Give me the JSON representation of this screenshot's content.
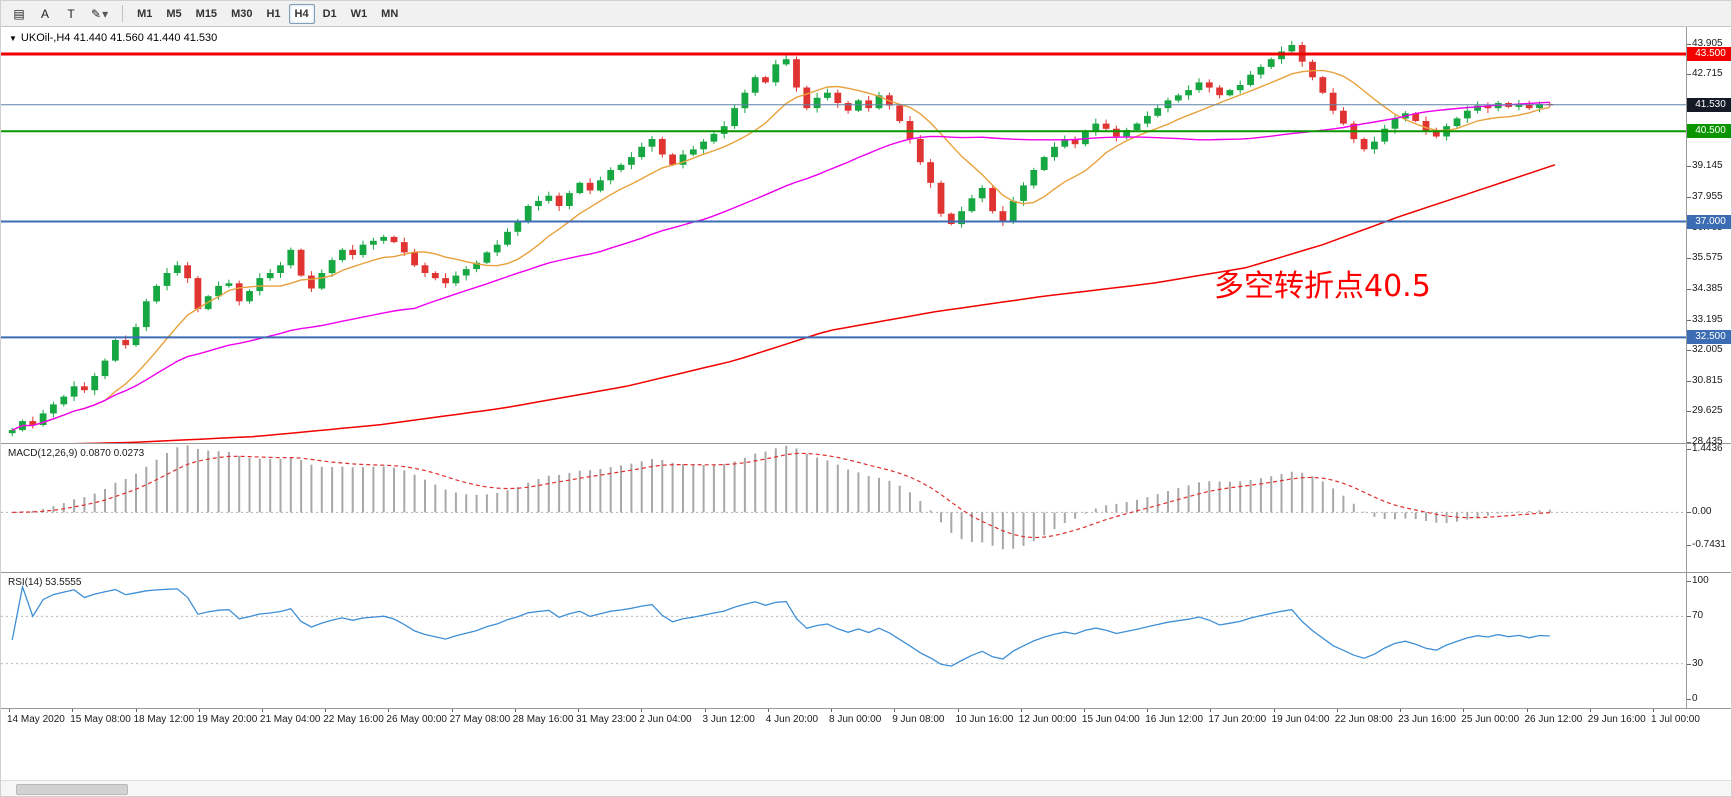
{
  "toolbar": {
    "icon_buttons": [
      {
        "name": "charts-grid-icon",
        "glyph": "▤",
        "dropdown": false
      },
      {
        "name": "cursor-icon",
        "glyph": "A",
        "dropdown": false
      },
      {
        "name": "text-tool-icon",
        "glyph": "T",
        "dropdown": false
      },
      {
        "name": "draw-tool-icon",
        "glyph": "✎",
        "dropdown": true
      }
    ],
    "timeframes": [
      {
        "label": "M1",
        "active": false
      },
      {
        "label": "M5",
        "active": false
      },
      {
        "label": "M15",
        "active": false
      },
      {
        "label": "M30",
        "active": false
      },
      {
        "label": "H1",
        "active": false
      },
      {
        "label": "H4",
        "active": true
      },
      {
        "label": "D1",
        "active": false
      },
      {
        "label": "W1",
        "active": false
      },
      {
        "label": "MN",
        "active": false
      }
    ]
  },
  "chart": {
    "expander_glyph": "▼",
    "title": "UKOil-,H4 41.440 41.560 41.440 41.530",
    "annotation": "多空转折点40.5",
    "levels": [
      {
        "price": 43.5,
        "label": "43.500",
        "color": "#f20000",
        "thickness": 3
      },
      {
        "price": 40.5,
        "label": "40.500",
        "color": "#0a9600",
        "thickness": 2
      },
      {
        "price": 37.0,
        "label": "37.000",
        "color": "#3c6cb4",
        "thickness": 2
      },
      {
        "price": 32.5,
        "label": "32.500",
        "color": "#3c6cb4",
        "thickness": 2
      }
    ],
    "current_price": {
      "price": 41.53,
      "label": "41.530",
      "line_color": "#5c84a8",
      "badge_color": "#141a26"
    }
  },
  "chart_data": {
    "type": "candlestick",
    "symbol": "UKOil-",
    "timeframe": "H4",
    "ohlc": {
      "open": 41.44,
      "high": 41.56,
      "low": 41.44,
      "close": 41.53
    },
    "price_range": {
      "min": 28.4,
      "max": 44.55
    },
    "price_ticks": [
      "43.905",
      "42.715",
      "41.525",
      "40.335",
      "39.145",
      "37.955",
      "36.765",
      "35.575",
      "34.385",
      "33.195",
      "32.005",
      "30.815",
      "29.625",
      "28.435"
    ],
    "up_color": "#16a642",
    "down_color": "#df3432",
    "closes": [
      28.9,
      29.25,
      29.1,
      29.55,
      29.9,
      30.2,
      30.6,
      30.45,
      31.0,
      31.6,
      32.4,
      32.2,
      32.9,
      33.9,
      34.5,
      35.0,
      35.3,
      34.8,
      33.6,
      34.1,
      34.5,
      34.6,
      33.9,
      34.3,
      34.8,
      35.0,
      35.3,
      35.9,
      34.9,
      34.4,
      35.0,
      35.5,
      35.9,
      35.7,
      36.1,
      36.25,
      36.4,
      36.2,
      35.8,
      35.3,
      35.0,
      34.8,
      34.6,
      34.9,
      35.15,
      35.4,
      35.8,
      36.1,
      36.6,
      37.0,
      37.6,
      37.8,
      38.0,
      37.6,
      38.1,
      38.5,
      38.2,
      38.6,
      39.0,
      39.2,
      39.5,
      39.9,
      40.2,
      39.6,
      39.2,
      39.6,
      39.8,
      40.1,
      40.4,
      40.7,
      41.4,
      42.0,
      42.6,
      42.4,
      43.1,
      43.3,
      42.2,
      41.4,
      41.8,
      42.0,
      41.6,
      41.3,
      41.7,
      41.4,
      41.9,
      41.5,
      40.9,
      40.2,
      39.3,
      38.5,
      37.3,
      36.9,
      37.4,
      37.9,
      38.3,
      37.4,
      37.0,
      37.8,
      38.4,
      39.0,
      39.5,
      39.9,
      40.2,
      40.0,
      40.5,
      40.8,
      40.6,
      40.3,
      40.55,
      40.8,
      41.1,
      41.4,
      41.7,
      41.9,
      42.1,
      42.4,
      42.2,
      41.9,
      42.1,
      42.3,
      42.7,
      43.0,
      43.3,
      43.6,
      43.85,
      43.2,
      42.6,
      42.0,
      41.3,
      40.8,
      40.2,
      39.8,
      40.1,
      40.6,
      41.0,
      41.2,
      40.9,
      40.5,
      40.3,
      40.7,
      41.0,
      41.3,
      41.5,
      41.4,
      41.6,
      41.45,
      41.55,
      41.4,
      41.56,
      41.53
    ],
    "overlays": {
      "ma_fast": {
        "period": 10,
        "color": "#e8a13c"
      },
      "ma_mid": {
        "period": 40,
        "color": "#ee00ee"
      },
      "ma_long": {
        "color": "#f20000",
        "anchors": [
          [
            0,
            28.32
          ],
          [
            0.08,
            28.42
          ],
          [
            0.16,
            28.65
          ],
          [
            0.24,
            29.1
          ],
          [
            0.32,
            29.75
          ],
          [
            0.4,
            30.6
          ],
          [
            0.47,
            31.6
          ],
          [
            0.53,
            32.75
          ],
          [
            0.6,
            33.5
          ],
          [
            0.67,
            34.1
          ],
          [
            0.74,
            34.6
          ],
          [
            0.8,
            35.2
          ],
          [
            0.85,
            36.1
          ],
          [
            0.9,
            37.2
          ],
          [
            0.95,
            38.2
          ],
          [
            1,
            39.2
          ]
        ]
      }
    },
    "indicators": {
      "macd": {
        "label": "MACD(12,26,9) 0.0870 0.0273",
        "fast": 12,
        "slow": 26,
        "signal_period": 9,
        "range": {
          "max": 1.55,
          "min": -1.35
        },
        "ticks": [
          {
            "label": "1.4436",
            "value": 1.4436
          },
          {
            "label": "0.00",
            "value": 0
          },
          {
            "label": "-0.7431",
            "value": -0.7431
          }
        ],
        "hist_color": "#a8a8a8",
        "signal_color": "#e03030"
      },
      "rsi": {
        "label": "RSI(14) 53.5555",
        "period": 14,
        "color": "#3f8fd6",
        "levels": [
          70,
          30
        ],
        "ticks": [
          {
            "label": "100",
            "value": 100
          },
          {
            "label": "70",
            "value": 70
          },
          {
            "label": "30",
            "value": 30
          },
          {
            "label": "0",
            "value": 0
          }
        ]
      }
    },
    "time_labels": [
      "14 May 2020",
      "15 May 08:00",
      "18 May 12:00",
      "19 May 20:00",
      "21 May 04:00",
      "22 May 16:00",
      "26 May 00:00",
      "27 May 08:00",
      "28 May 16:00",
      "31 May 23:00",
      "2 Jun 04:00",
      "3 Jun 12:00",
      "4 Jun 20:00",
      "8 Jun 00:00",
      "9 Jun 08:00",
      "10 Jun 16:00",
      "12 Jun 00:00",
      "15 Jun 04:00",
      "16 Jun 12:00",
      "17 Jun 20:00",
      "19 Jun 04:00",
      "22 Jun 08:00",
      "23 Jun 16:00",
      "25 Jun 00:00",
      "26 Jun 12:00",
      "29 Jun 16:00",
      "1 Jul 00:00"
    ]
  }
}
